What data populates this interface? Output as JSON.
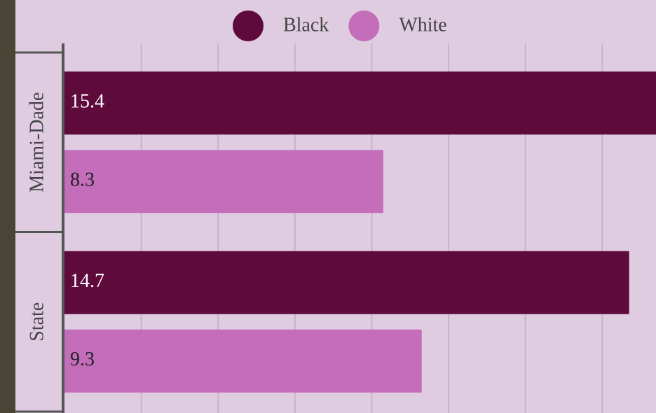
{
  "chart_data": {
    "type": "bar",
    "orientation": "horizontal",
    "categories": [
      "Miami-Dade",
      "State"
    ],
    "series": [
      {
        "name": "Black",
        "color": "#5e0a3c",
        "values": [
          15.4,
          14.7
        ]
      },
      {
        "name": "White",
        "color": "#c36dbb",
        "values": [
          8.3,
          9.3
        ]
      }
    ],
    "xlim": [
      0,
      15.4
    ],
    "xticks": [
      0,
      2,
      4,
      6,
      8,
      10,
      12,
      14
    ],
    "grid": true,
    "legend": "top"
  }
}
